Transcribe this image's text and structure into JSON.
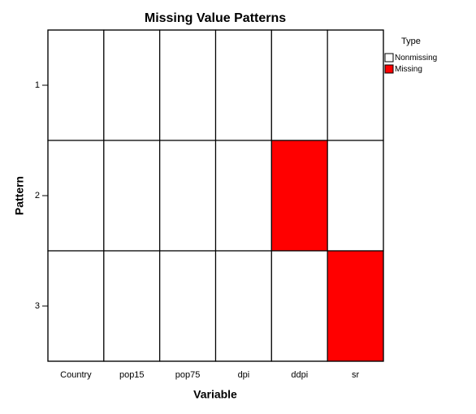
{
  "chart_data": {
    "type": "heatmap",
    "title": "Missing Value Patterns",
    "x_label": "Variable",
    "y_label": "Pattern",
    "x_categories": [
      "Country",
      "pop15",
      "pop75",
      "dpi",
      "ddpi",
      "sr"
    ],
    "y_categories": [
      "1",
      "2",
      "3"
    ],
    "values": [
      [
        "Nonmissing",
        "Nonmissing",
        "Nonmissing",
        "Nonmissing",
        "Nonmissing",
        "Nonmissing"
      ],
      [
        "Nonmissing",
        "Nonmissing",
        "Nonmissing",
        "Nonmissing",
        "Missing",
        "Nonmissing"
      ],
      [
        "Nonmissing",
        "Nonmissing",
        "Nonmissing",
        "Nonmissing",
        "Nonmissing",
        "Missing"
      ]
    ],
    "legend": {
      "title": "Type",
      "entries": [
        {
          "name": "Nonmissing",
          "color": "#ffffff"
        },
        {
          "name": "Missing",
          "color": "#ff0000"
        }
      ]
    }
  }
}
